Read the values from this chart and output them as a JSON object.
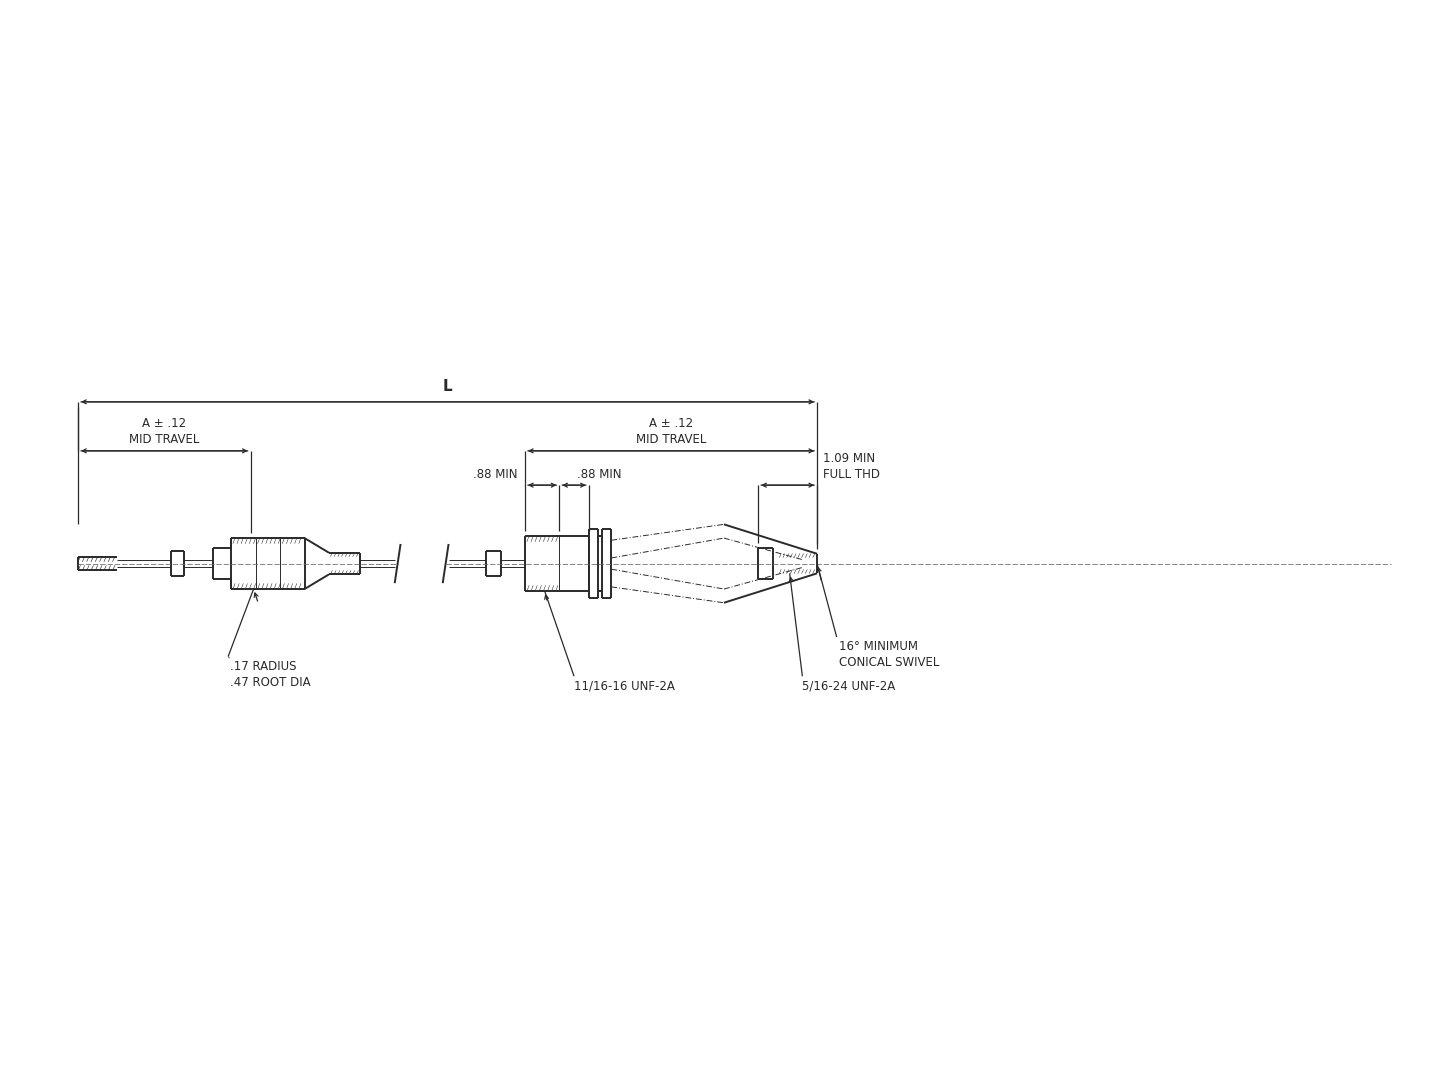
{
  "bg_color": "#ffffff",
  "line_color": "#2a2a2a",
  "text_color": "#2a2a2a",
  "figsize": [
    14.45,
    10.84
  ],
  "dpi": 100,
  "annotations": {
    "L_label": "L",
    "A_left_label": "A ± .12\nMID TRAVEL",
    "A_right_label": "A ± .12\nMID TRAVEL",
    "radius_label": ".17 RADIUS\n.47 ROOT DIA",
    "unf_11_16": "11/16-16 UNF-2A",
    "unf_5_16": "5/16-24 UNF-2A",
    "88min_left": ".88 MIN",
    "88min_right": ".88 MIN",
    "full_thd": "1.09 MIN\nFULL THD",
    "conical": "16° MINIMUM\nCONICAL SWIVEL"
  }
}
